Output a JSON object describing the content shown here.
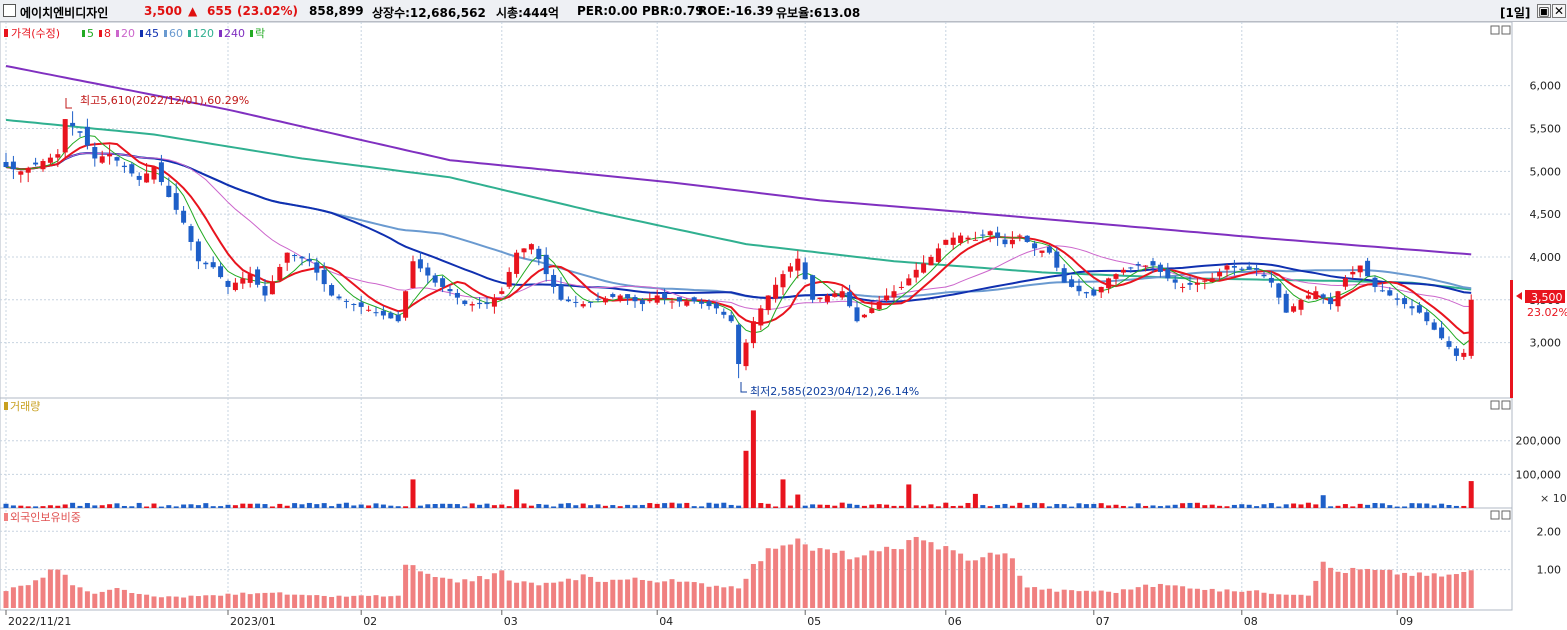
{
  "header": {
    "stock_name": "에이치엔비디자인",
    "price": "3,500",
    "change_arrow": "▲",
    "change": "655",
    "change_pct": "(23.02%)",
    "volume": "858,899",
    "listed_shares": "상장수:12,686,562",
    "market_cap": "시총:444억",
    "per": "PER:0.00",
    "pbr": "PBR:0.79",
    "roe": "ROE:-16.39",
    "float_ratio": "유보율:613.08",
    "period": "[1일]",
    "window_buttons": [
      "▣",
      "✕"
    ]
  },
  "colors": {
    "up": "#e8141e",
    "down": "#1e5fc8",
    "ma5": "#22aa22",
    "ma8": "#e8141e",
    "ma20": "#cc66cc",
    "ma45": "#1030b0",
    "ma60": "#6a9ad0",
    "ma120": "#30b090",
    "ma240": "#8030c0",
    "foreign": "#f08080",
    "grid": "#c8d4e0"
  },
  "chart_data": [
    {
      "type": "candlestick",
      "legend": [
        {
          "label": "가격(수정)",
          "color": "#e8141e"
        },
        {
          "label": "5",
          "color": "#22aa22"
        },
        {
          "label": "8",
          "color": "#e8141e"
        },
        {
          "label": "20",
          "color": "#cc66cc"
        },
        {
          "label": "45",
          "color": "#1030b0"
        },
        {
          "label": "60",
          "color": "#6a9ad0"
        },
        {
          "label": "120",
          "color": "#30b090"
        },
        {
          "label": "240",
          "color": "#8030c0"
        },
        {
          "label": "락",
          "color": "#22aa22"
        }
      ],
      "y_ticks": [
        "3,000",
        "3,500",
        "4,000",
        "4,500",
        "5,000",
        "5,500",
        "6,000"
      ],
      "y_tick_values": [
        3000,
        3500,
        4000,
        4500,
        5000,
        5500,
        6000
      ],
      "ylim": [
        2400,
        6650
      ],
      "annotations": {
        "high": "최고5,610(2022/12/01),60.29%",
        "low": "최저2,585(2023/04/12),26.14%"
      },
      "last_price_label": "3,500",
      "last_change_label": "23.02%",
      "anchors": [
        [
          0,
          5050
        ],
        [
          2,
          5000
        ],
        [
          5,
          5120
        ],
        [
          7,
          5200
        ],
        [
          8,
          5610
        ],
        [
          10,
          5450
        ],
        [
          12,
          5150
        ],
        [
          14,
          5200
        ],
        [
          16,
          5050
        ],
        [
          18,
          4900
        ],
        [
          20,
          5050
        ],
        [
          22,
          4700
        ],
        [
          24,
          4400
        ],
        [
          26,
          3950
        ],
        [
          28,
          3880
        ],
        [
          30,
          3650
        ],
        [
          33,
          3800
        ],
        [
          35,
          3550
        ],
        [
          38,
          4050
        ],
        [
          41,
          3950
        ],
        [
          44,
          3550
        ],
        [
          47,
          3450
        ],
        [
          50,
          3350
        ],
        [
          53,
          3250
        ],
        [
          55,
          3950
        ],
        [
          58,
          3700
        ],
        [
          60,
          3600
        ],
        [
          62,
          3450
        ],
        [
          65,
          3450
        ],
        [
          67,
          3600
        ],
        [
          69,
          4050
        ],
        [
          71,
          4150
        ],
        [
          73,
          3800
        ],
        [
          75,
          3500
        ],
        [
          78,
          3450
        ],
        [
          80,
          3500
        ],
        [
          83,
          3550
        ],
        [
          86,
          3450
        ],
        [
          88,
          3550
        ],
        [
          90,
          3480
        ],
        [
          93,
          3480
        ],
        [
          96,
          3400
        ],
        [
          98,
          3250
        ],
        [
          99,
          2750
        ],
        [
          101,
          3250
        ],
        [
          103,
          3550
        ],
        [
          105,
          3800
        ],
        [
          107,
          3980
        ],
        [
          109,
          3500
        ],
        [
          111,
          3550
        ],
        [
          113,
          3600
        ],
        [
          115,
          3250
        ],
        [
          117,
          3400
        ],
        [
          119,
          3550
        ],
        [
          121,
          3650
        ],
        [
          123,
          3850
        ],
        [
          125,
          4000
        ],
        [
          127,
          4200
        ],
        [
          129,
          4250
        ],
        [
          131,
          4200
        ],
        [
          133,
          4300
        ],
        [
          135,
          4150
        ],
        [
          137,
          4250
        ],
        [
          139,
          4100
        ],
        [
          141,
          4050
        ],
        [
          143,
          3700
        ],
        [
          145,
          3600
        ],
        [
          147,
          3550
        ],
        [
          149,
          3750
        ],
        [
          151,
          3850
        ],
        [
          153,
          3900
        ],
        [
          155,
          3900
        ],
        [
          157,
          3750
        ],
        [
          159,
          3650
        ],
        [
          161,
          3700
        ],
        [
          163,
          3750
        ],
        [
          165,
          3900
        ],
        [
          167,
          3850
        ],
        [
          169,
          3850
        ],
        [
          171,
          3700
        ],
        [
          173,
          3350
        ],
        [
          175,
          3500
        ],
        [
          177,
          3600
        ],
        [
          179,
          3450
        ],
        [
          181,
          3750
        ],
        [
          183,
          3900
        ],
        [
          185,
          3650
        ],
        [
          187,
          3550
        ],
        [
          189,
          3450
        ],
        [
          191,
          3350
        ],
        [
          193,
          3150
        ],
        [
          195,
          2950
        ],
        [
          196,
          2845
        ],
        [
          197,
          2880
        ],
        [
          198,
          3500
        ]
      ],
      "ma_anchors": {
        "ma240": [
          [
            0,
            6230
          ],
          [
            30,
            5720
          ],
          [
            60,
            5130
          ],
          [
            90,
            4870
          ],
          [
            110,
            4660
          ],
          [
            130,
            4520
          ],
          [
            150,
            4370
          ],
          [
            170,
            4220
          ],
          [
            198,
            4030
          ]
        ],
        "ma120": [
          [
            0,
            5600
          ],
          [
            20,
            5430
          ],
          [
            40,
            5150
          ],
          [
            60,
            4930
          ],
          [
            80,
            4520
          ],
          [
            100,
            4150
          ],
          [
            120,
            3950
          ],
          [
            140,
            3820
          ],
          [
            160,
            3750
          ],
          [
            180,
            3720
          ],
          [
            190,
            3700
          ],
          [
            198,
            3620
          ]
        ]
      }
    },
    {
      "type": "bar",
      "legend_label": "거래량",
      "y_ticks": [
        "100,000",
        "200,000"
      ],
      "y_tick_values": [
        100000,
        200000
      ],
      "ylim": [
        0,
        315000
      ],
      "unit_note": "× 10",
      "spikes": [
        [
          55,
          2,
          85000
        ],
        [
          69,
          2,
          55000
        ],
        [
          100,
          1,
          170000
        ],
        [
          101,
          2,
          290000
        ],
        [
          105,
          2,
          85000
        ],
        [
          107,
          1,
          40000
        ],
        [
          122,
          2,
          70000
        ],
        [
          131,
          1,
          42000
        ],
        [
          178,
          2,
          38000
        ],
        [
          198,
          2,
          80000
        ]
      ]
    },
    {
      "type": "bar",
      "legend_label": "외국인보유비중",
      "y_ticks": [
        "1.00",
        "2.00"
      ],
      "y_tick_values": [
        1,
        2
      ],
      "ylim": [
        0,
        2.45
      ],
      "anchors": [
        [
          0,
          0.45
        ],
        [
          4,
          0.7
        ],
        [
          7,
          1.05
        ],
        [
          9,
          0.6
        ],
        [
          12,
          0.35
        ],
        [
          15,
          0.5
        ],
        [
          20,
          0.28
        ],
        [
          25,
          0.3
        ],
        [
          30,
          0.35
        ],
        [
          35,
          0.42
        ],
        [
          40,
          0.32
        ],
        [
          45,
          0.3
        ],
        [
          50,
          0.32
        ],
        [
          53,
          0.3
        ],
        [
          54,
          1.15
        ],
        [
          56,
          0.95
        ],
        [
          58,
          0.75
        ],
        [
          61,
          0.7
        ],
        [
          65,
          0.8
        ],
        [
          67,
          0.95
        ],
        [
          68,
          0.7
        ],
        [
          72,
          0.62
        ],
        [
          75,
          0.65
        ],
        [
          78,
          0.85
        ],
        [
          80,
          0.72
        ],
        [
          85,
          0.75
        ],
        [
          90,
          0.7
        ],
        [
          95,
          0.6
        ],
        [
          99,
          0.55
        ],
        [
          101,
          1.1
        ],
        [
          104,
          1.65
        ],
        [
          106,
          1.75
        ],
        [
          110,
          1.5
        ],
        [
          113,
          1.4
        ],
        [
          116,
          1.3
        ],
        [
          118,
          1.5
        ],
        [
          121,
          1.45
        ],
        [
          123,
          1.98
        ],
        [
          126,
          1.6
        ],
        [
          129,
          1.4
        ],
        [
          131,
          1.2
        ],
        [
          134,
          1.5
        ],
        [
          136,
          1.25
        ],
        [
          138,
          0.55
        ],
        [
          142,
          0.45
        ],
        [
          146,
          0.45
        ],
        [
          150,
          0.42
        ],
        [
          153,
          0.55
        ],
        [
          156,
          0.6
        ],
        [
          160,
          0.55
        ],
        [
          164,
          0.45
        ],
        [
          168,
          0.45
        ],
        [
          172,
          0.38
        ],
        [
          176,
          0.35
        ],
        [
          178,
          1.15
        ],
        [
          180,
          0.95
        ],
        [
          183,
          1.0
        ],
        [
          186,
          0.95
        ],
        [
          189,
          0.9
        ],
        [
          192,
          0.85
        ],
        [
          195,
          0.85
        ],
        [
          198,
          0.95
        ]
      ]
    }
  ],
  "x_axis": {
    "labels": [
      "2022/11/21",
      "2023/01",
      "02",
      "03",
      "04",
      "05",
      "06",
      "07",
      "08",
      "09"
    ],
    "label_index": [
      0,
      30,
      48,
      67,
      88,
      108,
      127,
      147,
      167,
      188
    ]
  }
}
